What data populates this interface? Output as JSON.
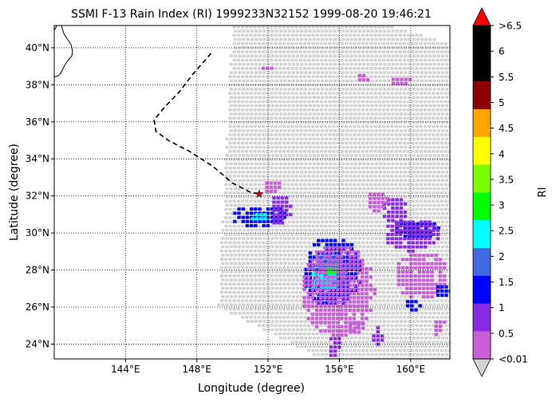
{
  "title": "SSMI F-13 Rain Index (RI) 1999233N32152 1999-08-20 19:46:21",
  "xlabel": "Longitude (degree)",
  "ylabel": "Latitude (degree)",
  "x_ticks": [
    "144°E",
    "148°E",
    "152°E",
    "156°E",
    "160°E"
  ],
  "y_ticks": [
    "24°N",
    "26°N",
    "28°N",
    "30°N",
    "32°N",
    "34°N",
    "36°N",
    "38°N",
    "40°N"
  ],
  "colorbar": {
    "label": "RI",
    "tick_labels": [
      "<0.01",
      "0.5",
      "1",
      "1.5",
      "2",
      "2.5",
      "3",
      "3.5",
      "4",
      "4.5",
      "5",
      "5.5",
      "6",
      ">6.5"
    ],
    "colors": [
      "#c85ed8",
      "#8a2be2",
      "#0000ff",
      "#4169e1",
      "#00ffff",
      "#00ff00",
      "#7cfc00",
      "#ffff00",
      "#ffa500",
      "#8b0000",
      "#000000",
      "#000000",
      "#ff0000",
      "#d3d3d3"
    ]
  },
  "chart_data": {
    "type": "map",
    "title": "SSMI F-13 Rain Index (RI) 1999233N32152 1999-08-20 19:46:21",
    "xlabel": "Longitude (degree)",
    "ylabel": "Latitude (degree)",
    "xlim": [
      140.0,
      162.2
    ],
    "ylim": [
      23.2,
      41.2
    ],
    "grid": true,
    "storm_center": {
      "lon": 151.5,
      "lat": 32.1
    },
    "track": [
      [
        148.8,
        39.7
      ],
      [
        147.8,
        38.6
      ],
      [
        147.0,
        37.6
      ],
      [
        146.2,
        36.8
      ],
      [
        145.6,
        36.1
      ],
      [
        145.7,
        35.5
      ],
      [
        146.4,
        35.0
      ],
      [
        147.6,
        34.4
      ],
      [
        148.9,
        33.6
      ],
      [
        150.0,
        32.7
      ],
      [
        151.0,
        32.2
      ],
      [
        151.5,
        32.1
      ]
    ],
    "swath_polygon": [
      [
        150.0,
        41.2
      ],
      [
        158.8,
        41.2
      ],
      [
        162.2,
        40.2
      ],
      [
        162.2,
        23.2
      ],
      [
        155.0,
        23.2
      ],
      [
        149.2,
        26.0
      ]
    ],
    "rain_cells": [
      {
        "lon": 151.4,
        "lat": 31.0,
        "rx": 1.6,
        "ry": 0.6,
        "level": 2
      },
      {
        "lon": 151.3,
        "lat": 31.0,
        "rx": 0.5,
        "ry": 0.3,
        "level": 4
      },
      {
        "lon": 152.6,
        "lat": 31.3,
        "rx": 0.6,
        "ry": 0.9,
        "level": 1
      },
      {
        "lon": 155.5,
        "lat": 28.0,
        "rx": 1.7,
        "ry": 1.9,
        "level": 2
      },
      {
        "lon": 155.3,
        "lat": 28.0,
        "rx": 1.0,
        "ry": 1.0,
        "level": 3
      },
      {
        "lon": 155.0,
        "lat": 27.5,
        "rx": 0.8,
        "ry": 0.6,
        "level": 4
      },
      {
        "lon": 155.5,
        "lat": 28.2,
        "rx": 0.5,
        "ry": 0.4,
        "level": 5
      },
      {
        "lon": 155.8,
        "lat": 27.0,
        "rx": 2.1,
        "ry": 2.5,
        "level": 0
      },
      {
        "lon": 160.2,
        "lat": 30.3,
        "rx": 1.3,
        "ry": 0.5,
        "level": 2
      },
      {
        "lon": 160.0,
        "lat": 30.0,
        "rx": 1.6,
        "ry": 0.9,
        "level": 1
      },
      {
        "lon": 159.0,
        "lat": 31.3,
        "rx": 0.8,
        "ry": 0.8,
        "level": 1
      },
      {
        "lon": 160.5,
        "lat": 27.8,
        "rx": 1.5,
        "ry": 1.3,
        "level": 0
      },
      {
        "lon": 160.0,
        "lat": 26.2,
        "rx": 0.5,
        "ry": 0.4,
        "level": 2
      },
      {
        "lon": 161.7,
        "lat": 27.0,
        "rx": 0.5,
        "ry": 0.4,
        "level": 2
      },
      {
        "lon": 158.0,
        "lat": 31.8,
        "rx": 0.6,
        "ry": 0.6,
        "level": 0
      },
      {
        "lon": 158.0,
        "lat": 24.6,
        "rx": 0.4,
        "ry": 0.6,
        "level": 1
      },
      {
        "lon": 155.6,
        "lat": 24.0,
        "rx": 0.4,
        "ry": 0.6,
        "level": 1
      },
      {
        "lon": 151.8,
        "lat": 39.0,
        "rx": 0.4,
        "ry": 0.2,
        "level": 0
      },
      {
        "lon": 157.2,
        "lat": 38.5,
        "rx": 0.4,
        "ry": 0.3,
        "level": 0
      },
      {
        "lon": 159.3,
        "lat": 38.3,
        "rx": 0.6,
        "ry": 0.3,
        "level": 0
      },
      {
        "lon": 152.2,
        "lat": 32.6,
        "rx": 0.6,
        "ry": 0.4,
        "level": 0
      },
      {
        "lon": 156.8,
        "lat": 25.0,
        "rx": 0.5,
        "ry": 0.4,
        "level": 0
      },
      {
        "lon": 161.5,
        "lat": 25.0,
        "rx": 0.4,
        "ry": 0.5,
        "level": 0
      }
    ]
  }
}
